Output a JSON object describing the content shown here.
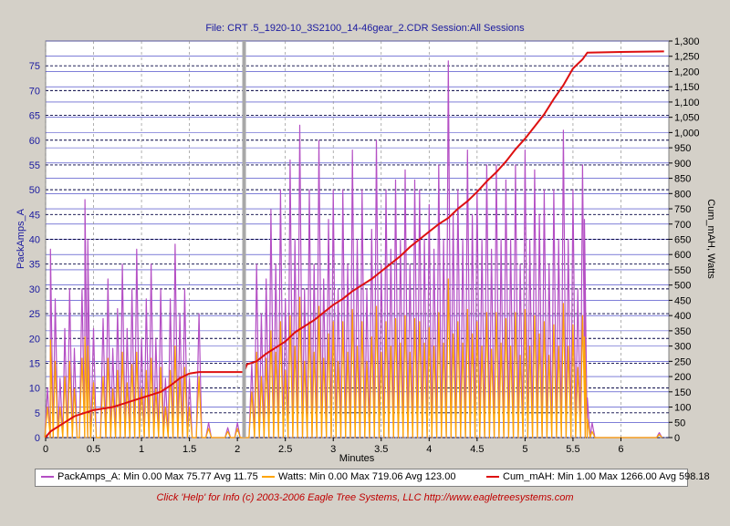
{
  "header": {
    "title": "File: CRT .5_1920-10_3S2100_14-46gear_2.CDR   Session:All Sessions"
  },
  "footer": {
    "text": "Click 'Help' for Info  (c) 2003-2006 Eagle Tree Systems, LLC     http://www.eagletreesystems.com"
  },
  "legend": {
    "items": [
      {
        "name": "PackAmps_A",
        "color": "#b44fc4",
        "text": "PackAmps_A:  Min 0.00 Max 75.77 Avg 11.75"
      },
      {
        "name": "Watts",
        "color": "#ffa500",
        "text": "Watts:  Min 0.00 Max 719.06 Avg 123.00"
      },
      {
        "name": "Cum_mAH",
        "color": "#dd1010",
        "text": "Cum_mAH:  Min 1.00 Max 1266.00 Avg 598.18"
      }
    ]
  },
  "chart_data": {
    "type": "line",
    "xlabel": "Minutes",
    "ylabel_left": "PackAmps_A",
    "ylabel_right": "Cum_mAH, Watts",
    "xlim": [
      0,
      6.5
    ],
    "ylim_left": [
      0,
      80
    ],
    "ylim_right": [
      0,
      1300
    ],
    "x_ticks": [
      0,
      0.5,
      1,
      1.5,
      2,
      2.5,
      3,
      3.5,
      4,
      4.5,
      5,
      5.5,
      6
    ],
    "x_tick_labels": [
      "0",
      "0.5",
      "1",
      "1.5",
      "2",
      "2.5",
      "3",
      "3.5",
      "4",
      "4.5",
      "5",
      "5.5",
      "6"
    ],
    "y_left_ticks": [
      0,
      5,
      10,
      15,
      20,
      25,
      30,
      35,
      40,
      45,
      50,
      55,
      60,
      65,
      70,
      75
    ],
    "y_left_tick_labels": [
      "0",
      "5",
      "10",
      "15",
      "20",
      "25",
      "30",
      "35",
      "40",
      "45",
      "50",
      "55",
      "60",
      "65",
      "70",
      "75"
    ],
    "y_right_ticks": [
      0,
      50,
      100,
      150,
      200,
      250,
      300,
      350,
      400,
      450,
      500,
      550,
      600,
      650,
      700,
      750,
      800,
      850,
      900,
      950,
      1000,
      1050,
      1100,
      1150,
      1200,
      1250,
      1300
    ],
    "y_right_tick_labels": [
      "0",
      "50",
      "100",
      "150",
      "200",
      "250",
      "300",
      "350",
      "400",
      "450",
      "500",
      "550",
      "600",
      "650",
      "700",
      "750",
      "800",
      "850",
      "900",
      "950",
      "1,000",
      "1,050",
      "1,100",
      "1,150",
      "1,200",
      "1,250",
      "1,300"
    ],
    "session_break_x": 2.07,
    "series": [
      {
        "name": "PackAmps_A",
        "axis": "left",
        "color": "#b44fc4",
        "peaks": [
          [
            0.02,
            10
          ],
          [
            0.05,
            38
          ],
          [
            0.1,
            28
          ],
          [
            0.15,
            12
          ],
          [
            0.2,
            22
          ],
          [
            0.25,
            30
          ],
          [
            0.3,
            18
          ],
          [
            0.38,
            30
          ],
          [
            0.41,
            48
          ],
          [
            0.44,
            40
          ],
          [
            0.5,
            22
          ],
          [
            0.6,
            24
          ],
          [
            0.65,
            32
          ],
          [
            0.7,
            18
          ],
          [
            0.75,
            26
          ],
          [
            0.8,
            35
          ],
          [
            0.85,
            22
          ],
          [
            0.9,
            30
          ],
          [
            0.95,
            38
          ],
          [
            1.0,
            20
          ],
          [
            1.05,
            28
          ],
          [
            1.1,
            35
          ],
          [
            1.15,
            20
          ],
          [
            1.2,
            30
          ],
          [
            1.25,
            12
          ],
          [
            1.3,
            28
          ],
          [
            1.35,
            39
          ],
          [
            1.4,
            25
          ],
          [
            1.45,
            30
          ],
          [
            1.5,
            12
          ],
          [
            1.6,
            25
          ],
          [
            1.7,
            3
          ],
          [
            1.9,
            2
          ],
          [
            2.0,
            3
          ],
          [
            2.15,
            15
          ],
          [
            2.2,
            35
          ],
          [
            2.25,
            25
          ],
          [
            2.3,
            32
          ],
          [
            2.35,
            46
          ],
          [
            2.4,
            35
          ],
          [
            2.45,
            50
          ],
          [
            2.5,
            28
          ],
          [
            2.55,
            56
          ],
          [
            2.6,
            40
          ],
          [
            2.65,
            63
          ],
          [
            2.7,
            30
          ],
          [
            2.75,
            50
          ],
          [
            2.8,
            35
          ],
          [
            2.85,
            60
          ],
          [
            2.9,
            32
          ],
          [
            2.95,
            44
          ],
          [
            3.0,
            50
          ],
          [
            3.05,
            30
          ],
          [
            3.1,
            50
          ],
          [
            3.15,
            35
          ],
          [
            3.2,
            58
          ],
          [
            3.25,
            40
          ],
          [
            3.3,
            50
          ],
          [
            3.35,
            30
          ],
          [
            3.4,
            42
          ],
          [
            3.45,
            60
          ],
          [
            3.5,
            35
          ],
          [
            3.55,
            50
          ],
          [
            3.6,
            38
          ],
          [
            3.65,
            52
          ],
          [
            3.7,
            40
          ],
          [
            3.75,
            54
          ],
          [
            3.8,
            35
          ],
          [
            3.85,
            52
          ],
          [
            3.9,
            50
          ],
          [
            3.95,
            40
          ],
          [
            4.0,
            47
          ],
          [
            4.05,
            38
          ],
          [
            4.1,
            55
          ],
          [
            4.15,
            40
          ],
          [
            4.2,
            76
          ],
          [
            4.25,
            45
          ],
          [
            4.3,
            50
          ],
          [
            4.35,
            40
          ],
          [
            4.4,
            58
          ],
          [
            4.45,
            45
          ],
          [
            4.5,
            50
          ],
          [
            4.55,
            40
          ],
          [
            4.6,
            55
          ],
          [
            4.65,
            38
          ],
          [
            4.7,
            55
          ],
          [
            4.75,
            40
          ],
          [
            4.8,
            52
          ],
          [
            4.85,
            40
          ],
          [
            4.9,
            55
          ],
          [
            4.95,
            35
          ],
          [
            5.0,
            58
          ],
          [
            5.05,
            40
          ],
          [
            5.1,
            54
          ],
          [
            5.15,
            45
          ],
          [
            5.2,
            50
          ],
          [
            5.25,
            35
          ],
          [
            5.3,
            50
          ],
          [
            5.35,
            40
          ],
          [
            5.4,
            62
          ],
          [
            5.45,
            40
          ],
          [
            5.5,
            50
          ],
          [
            5.55,
            30
          ],
          [
            5.6,
            55
          ],
          [
            5.62,
            44
          ],
          [
            5.65,
            8
          ],
          [
            5.7,
            3
          ],
          [
            6.4,
            1
          ]
        ]
      },
      {
        "name": "Watts",
        "axis": "right",
        "color": "#ffa500",
        "peaks": [
          [
            0.02,
            100
          ],
          [
            0.05,
            320
          ],
          [
            0.1,
            250
          ],
          [
            0.15,
            100
          ],
          [
            0.2,
            200
          ],
          [
            0.25,
            250
          ],
          [
            0.3,
            160
          ],
          [
            0.38,
            260
          ],
          [
            0.41,
            330
          ],
          [
            0.44,
            300
          ],
          [
            0.5,
            180
          ],
          [
            0.6,
            200
          ],
          [
            0.65,
            260
          ],
          [
            0.7,
            160
          ],
          [
            0.75,
            220
          ],
          [
            0.8,
            280
          ],
          [
            0.85,
            180
          ],
          [
            0.9,
            240
          ],
          [
            0.95,
            280
          ],
          [
            1.0,
            160
          ],
          [
            1.05,
            220
          ],
          [
            1.1,
            260
          ],
          [
            1.15,
            160
          ],
          [
            1.2,
            230
          ],
          [
            1.25,
            100
          ],
          [
            1.3,
            220
          ],
          [
            1.35,
            300
          ],
          [
            1.4,
            200
          ],
          [
            1.45,
            230
          ],
          [
            1.5,
            100
          ],
          [
            1.6,
            200
          ],
          [
            1.7,
            30
          ],
          [
            1.9,
            20
          ],
          [
            2.0,
            30
          ],
          [
            2.15,
            150
          ],
          [
            2.2,
            280
          ],
          [
            2.25,
            200
          ],
          [
            2.3,
            260
          ],
          [
            2.35,
            350
          ],
          [
            2.4,
            280
          ],
          [
            2.45,
            380
          ],
          [
            2.5,
            220
          ],
          [
            2.55,
            400
          ],
          [
            2.6,
            300
          ],
          [
            2.65,
            460
          ],
          [
            2.7,
            250
          ],
          [
            2.75,
            380
          ],
          [
            2.8,
            280
          ],
          [
            2.85,
            430
          ],
          [
            2.9,
            260
          ],
          [
            2.95,
            340
          ],
          [
            3.0,
            380
          ],
          [
            3.05,
            250
          ],
          [
            3.1,
            380
          ],
          [
            3.15,
            280
          ],
          [
            3.2,
            420
          ],
          [
            3.25,
            300
          ],
          [
            3.3,
            380
          ],
          [
            3.35,
            250
          ],
          [
            3.4,
            330
          ],
          [
            3.45,
            430
          ],
          [
            3.5,
            280
          ],
          [
            3.55,
            380
          ],
          [
            3.6,
            300
          ],
          [
            3.65,
            390
          ],
          [
            3.7,
            310
          ],
          [
            3.75,
            400
          ],
          [
            3.8,
            280
          ],
          [
            3.85,
            390
          ],
          [
            3.9,
            380
          ],
          [
            3.95,
            310
          ],
          [
            4.0,
            360
          ],
          [
            4.05,
            300
          ],
          [
            4.1,
            410
          ],
          [
            4.15,
            310
          ],
          [
            4.2,
            520
          ],
          [
            4.25,
            340
          ],
          [
            4.3,
            380
          ],
          [
            4.35,
            310
          ],
          [
            4.4,
            420
          ],
          [
            4.45,
            340
          ],
          [
            4.5,
            380
          ],
          [
            4.55,
            300
          ],
          [
            4.6,
            410
          ],
          [
            4.65,
            290
          ],
          [
            4.7,
            410
          ],
          [
            4.75,
            310
          ],
          [
            4.8,
            390
          ],
          [
            4.85,
            300
          ],
          [
            4.9,
            410
          ],
          [
            4.95,
            270
          ],
          [
            5.0,
            420
          ],
          [
            5.05,
            300
          ],
          [
            5.1,
            400
          ],
          [
            5.15,
            340
          ],
          [
            5.2,
            380
          ],
          [
            5.25,
            270
          ],
          [
            5.3,
            370
          ],
          [
            5.35,
            300
          ],
          [
            5.4,
            440
          ],
          [
            5.45,
            300
          ],
          [
            5.5,
            370
          ],
          [
            5.55,
            230
          ],
          [
            5.6,
            400
          ],
          [
            5.62,
            330
          ],
          [
            5.65,
            60
          ],
          [
            5.7,
            20
          ],
          [
            6.4,
            10
          ]
        ]
      },
      {
        "name": "Cum_mAH",
        "axis": "right",
        "color": "#dd1010",
        "points": [
          [
            0,
            1
          ],
          [
            0.05,
            20
          ],
          [
            0.1,
            30
          ],
          [
            0.2,
            50
          ],
          [
            0.3,
            70
          ],
          [
            0.4,
            80
          ],
          [
            0.5,
            90
          ],
          [
            0.6,
            95
          ],
          [
            0.7,
            100
          ],
          [
            0.8,
            110
          ],
          [
            0.9,
            120
          ],
          [
            1.0,
            130
          ],
          [
            1.1,
            140
          ],
          [
            1.2,
            150
          ],
          [
            1.3,
            170
          ],
          [
            1.4,
            195
          ],
          [
            1.5,
            210
          ],
          [
            1.6,
            215
          ],
          [
            1.8,
            215
          ],
          [
            2.07,
            215
          ],
          [
            2.1,
            240
          ],
          [
            2.2,
            250
          ],
          [
            2.3,
            275
          ],
          [
            2.4,
            295
          ],
          [
            2.5,
            315
          ],
          [
            2.6,
            345
          ],
          [
            2.7,
            365
          ],
          [
            2.8,
            385
          ],
          [
            2.9,
            410
          ],
          [
            3.0,
            435
          ],
          [
            3.1,
            455
          ],
          [
            3.2,
            480
          ],
          [
            3.3,
            500
          ],
          [
            3.4,
            520
          ],
          [
            3.5,
            545
          ],
          [
            3.6,
            570
          ],
          [
            3.7,
            595
          ],
          [
            3.8,
            625
          ],
          [
            3.9,
            650
          ],
          [
            4.0,
            675
          ],
          [
            4.1,
            700
          ],
          [
            4.2,
            720
          ],
          [
            4.3,
            750
          ],
          [
            4.4,
            775
          ],
          [
            4.5,
            805
          ],
          [
            4.6,
            840
          ],
          [
            4.7,
            870
          ],
          [
            4.8,
            905
          ],
          [
            4.9,
            945
          ],
          [
            5.0,
            980
          ],
          [
            5.1,
            1020
          ],
          [
            5.2,
            1060
          ],
          [
            5.3,
            1110
          ],
          [
            5.4,
            1155
          ],
          [
            5.5,
            1210
          ],
          [
            5.6,
            1240
          ],
          [
            5.65,
            1262
          ],
          [
            6.0,
            1264
          ],
          [
            6.45,
            1266
          ]
        ]
      }
    ]
  }
}
